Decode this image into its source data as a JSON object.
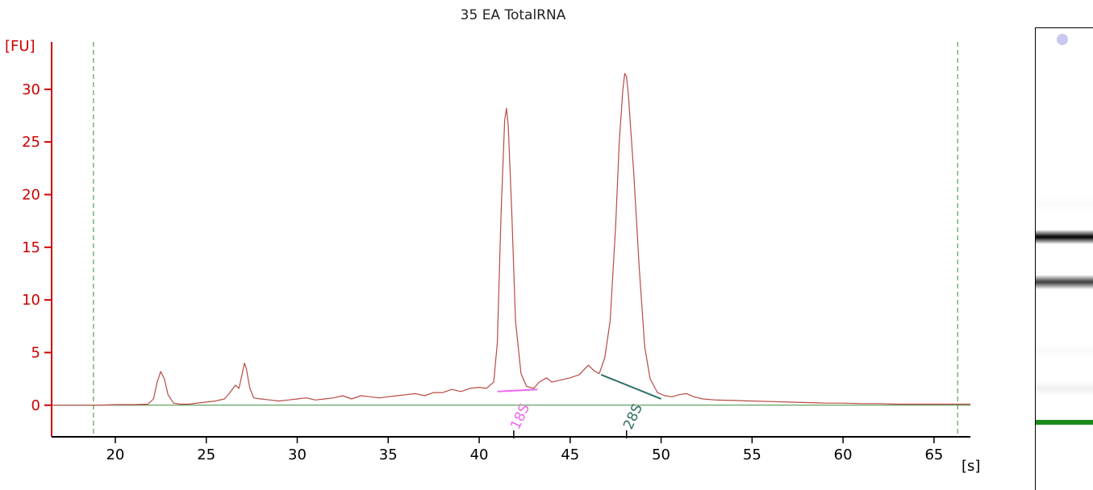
{
  "chart_data": {
    "type": "line",
    "title": "35 EA TotalRNA",
    "ylabel": "[FU]",
    "xlabel": "[s]",
    "xlim": [
      16.5,
      67.0
    ],
    "ylim": [
      -3,
      34.5
    ],
    "x_ticks": [
      20,
      25,
      30,
      35,
      40,
      45,
      50,
      55,
      60,
      65
    ],
    "y_ticks": [
      0,
      5,
      10,
      15,
      20,
      25,
      30
    ],
    "x_tick_labels": [
      "20",
      "25",
      "30",
      "35",
      "40",
      "45",
      "50",
      "55",
      "60",
      "65"
    ],
    "y_tick_labels": [
      "0",
      "5",
      "10",
      "15",
      "20",
      "25",
      "30"
    ],
    "colors": {
      "trace": "#b84a42",
      "axis_y": "#cc0000",
      "axis_x": "#000000",
      "baseline": "#3a8a3a",
      "markers": "#3a8a3a",
      "peak_18s": "#ee66ee",
      "peak_28s": "#2f6f6a"
    },
    "markers_x": [
      18.8,
      66.3
    ],
    "series": [
      {
        "x": [
          16.5,
          18.0,
          19.0,
          20.0,
          21.0,
          21.8,
          22.1,
          22.3,
          22.5,
          22.7,
          22.9,
          23.2,
          23.6,
          24.0,
          25.0,
          25.5,
          26.0,
          26.3,
          26.6,
          26.8,
          27.0,
          27.1,
          27.2,
          27.4,
          27.6,
          28.0,
          28.5,
          29.0,
          29.5,
          30.0,
          30.5,
          31.0,
          31.5,
          32.0,
          32.5,
          33.0,
          33.5,
          34.0,
          34.5,
          35.0,
          35.5,
          36.0,
          36.5,
          37.0,
          37.5,
          38.0,
          38.5,
          39.0,
          39.5,
          40.0,
          40.4,
          40.8,
          41.0,
          41.2,
          41.4,
          41.5,
          41.6,
          41.8,
          42.0,
          42.3,
          42.6,
          43.0,
          43.3,
          43.7,
          44.0,
          44.5,
          45.0,
          45.5,
          46.0,
          46.3,
          46.6,
          46.9,
          47.2,
          47.5,
          47.7,
          47.9,
          48.0,
          48.1,
          48.2,
          48.3,
          48.5,
          48.8,
          49.1,
          49.4,
          49.8,
          50.2,
          50.6,
          51.0,
          51.4,
          51.8,
          52.3,
          53.0,
          54.0,
          55.0,
          56.0,
          57.0,
          58.0,
          59.0,
          60.0,
          61.0,
          62.0,
          63.0,
          64.0,
          65.0,
          66.0,
          66.5,
          67.0
        ],
        "y": [
          0.0,
          0.0,
          0.0,
          0.05,
          0.05,
          0.1,
          0.6,
          2.2,
          3.2,
          2.5,
          1.0,
          0.2,
          0.1,
          0.1,
          0.3,
          0.4,
          0.6,
          1.2,
          1.9,
          1.6,
          3.2,
          4.0,
          3.5,
          1.6,
          0.7,
          0.6,
          0.5,
          0.4,
          0.5,
          0.6,
          0.7,
          0.5,
          0.6,
          0.7,
          0.9,
          0.6,
          0.9,
          0.8,
          0.7,
          0.8,
          0.9,
          1.0,
          1.1,
          0.9,
          1.2,
          1.2,
          1.5,
          1.3,
          1.6,
          1.7,
          1.6,
          2.2,
          6.0,
          18.0,
          27.0,
          28.2,
          26.5,
          18.0,
          8.0,
          3.0,
          1.8,
          1.6,
          2.2,
          2.6,
          2.2,
          2.4,
          2.6,
          2.9,
          3.8,
          3.3,
          3.0,
          4.5,
          8.0,
          17.0,
          25.0,
          30.0,
          31.5,
          31.2,
          29.5,
          27.0,
          22.0,
          13.0,
          5.5,
          2.5,
          1.2,
          0.9,
          0.8,
          1.0,
          1.1,
          0.8,
          0.6,
          0.5,
          0.45,
          0.4,
          0.35,
          0.3,
          0.25,
          0.2,
          0.2,
          0.15,
          0.15,
          0.1,
          0.1,
          0.1,
          0.1,
          0.1,
          0.1
        ]
      }
    ],
    "peaks": [
      {
        "label": "18S",
        "start": [
          41.0,
          1.3
        ],
        "end": [
          43.2,
          1.5
        ],
        "tick_x": 41.9
      },
      {
        "label": "28S",
        "start": [
          46.7,
          2.9
        ],
        "end": [
          50.0,
          0.6
        ],
        "tick_x": 48.1
      }
    ]
  },
  "gel": {
    "bands": [
      {
        "pos": 0.02,
        "color": "#c8c8f0",
        "intensity": 0.5,
        "kind": "dot"
      },
      {
        "pos": 0.38,
        "color": "#ececec",
        "intensity": 0.15,
        "kind": "band"
      },
      {
        "pos": 0.452,
        "color": "#111111",
        "intensity": 1.0,
        "kind": "band"
      },
      {
        "pos": 0.55,
        "color": "#2a2a2a",
        "intensity": 0.85,
        "kind": "band"
      },
      {
        "pos": 0.7,
        "color": "#e6e6e6",
        "intensity": 0.15,
        "kind": "band"
      },
      {
        "pos": 0.78,
        "color": "#cfcfcf",
        "intensity": 0.3,
        "kind": "band"
      },
      {
        "pos": 0.853,
        "color": "#1a8a1a",
        "intensity": 1.0,
        "kind": "marker"
      }
    ]
  }
}
